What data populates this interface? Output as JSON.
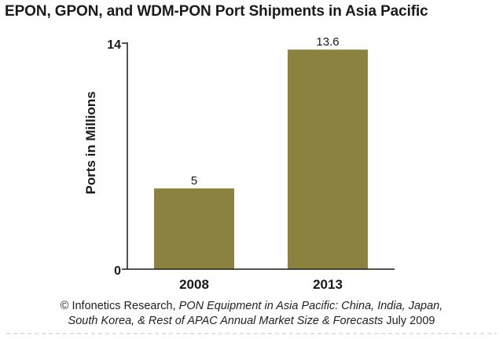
{
  "chart_data": {
    "type": "bar",
    "title": "EPON, GPON, and WDM-PON Port Shipments in Asia Pacific",
    "ylabel": "Ports in Millions",
    "xlabel": "",
    "categories": [
      "2008",
      "2013"
    ],
    "values": [
      5,
      13.6
    ],
    "data_labels": [
      "5",
      "13.6"
    ],
    "yticks": [
      "0",
      "14"
    ],
    "ylim": [
      0,
      14
    ],
    "bar_color": "#8c8240",
    "grid": false,
    "legend": "none"
  },
  "source": {
    "prefix": "© Infonetics Research, ",
    "italic_line1": "PON Equipment in Asia Pacific: China, India, Japan,",
    "italic_line2": "South Korea, & Rest of APAC Annual Market Size & Forecasts",
    "suffix": " July 2009"
  }
}
